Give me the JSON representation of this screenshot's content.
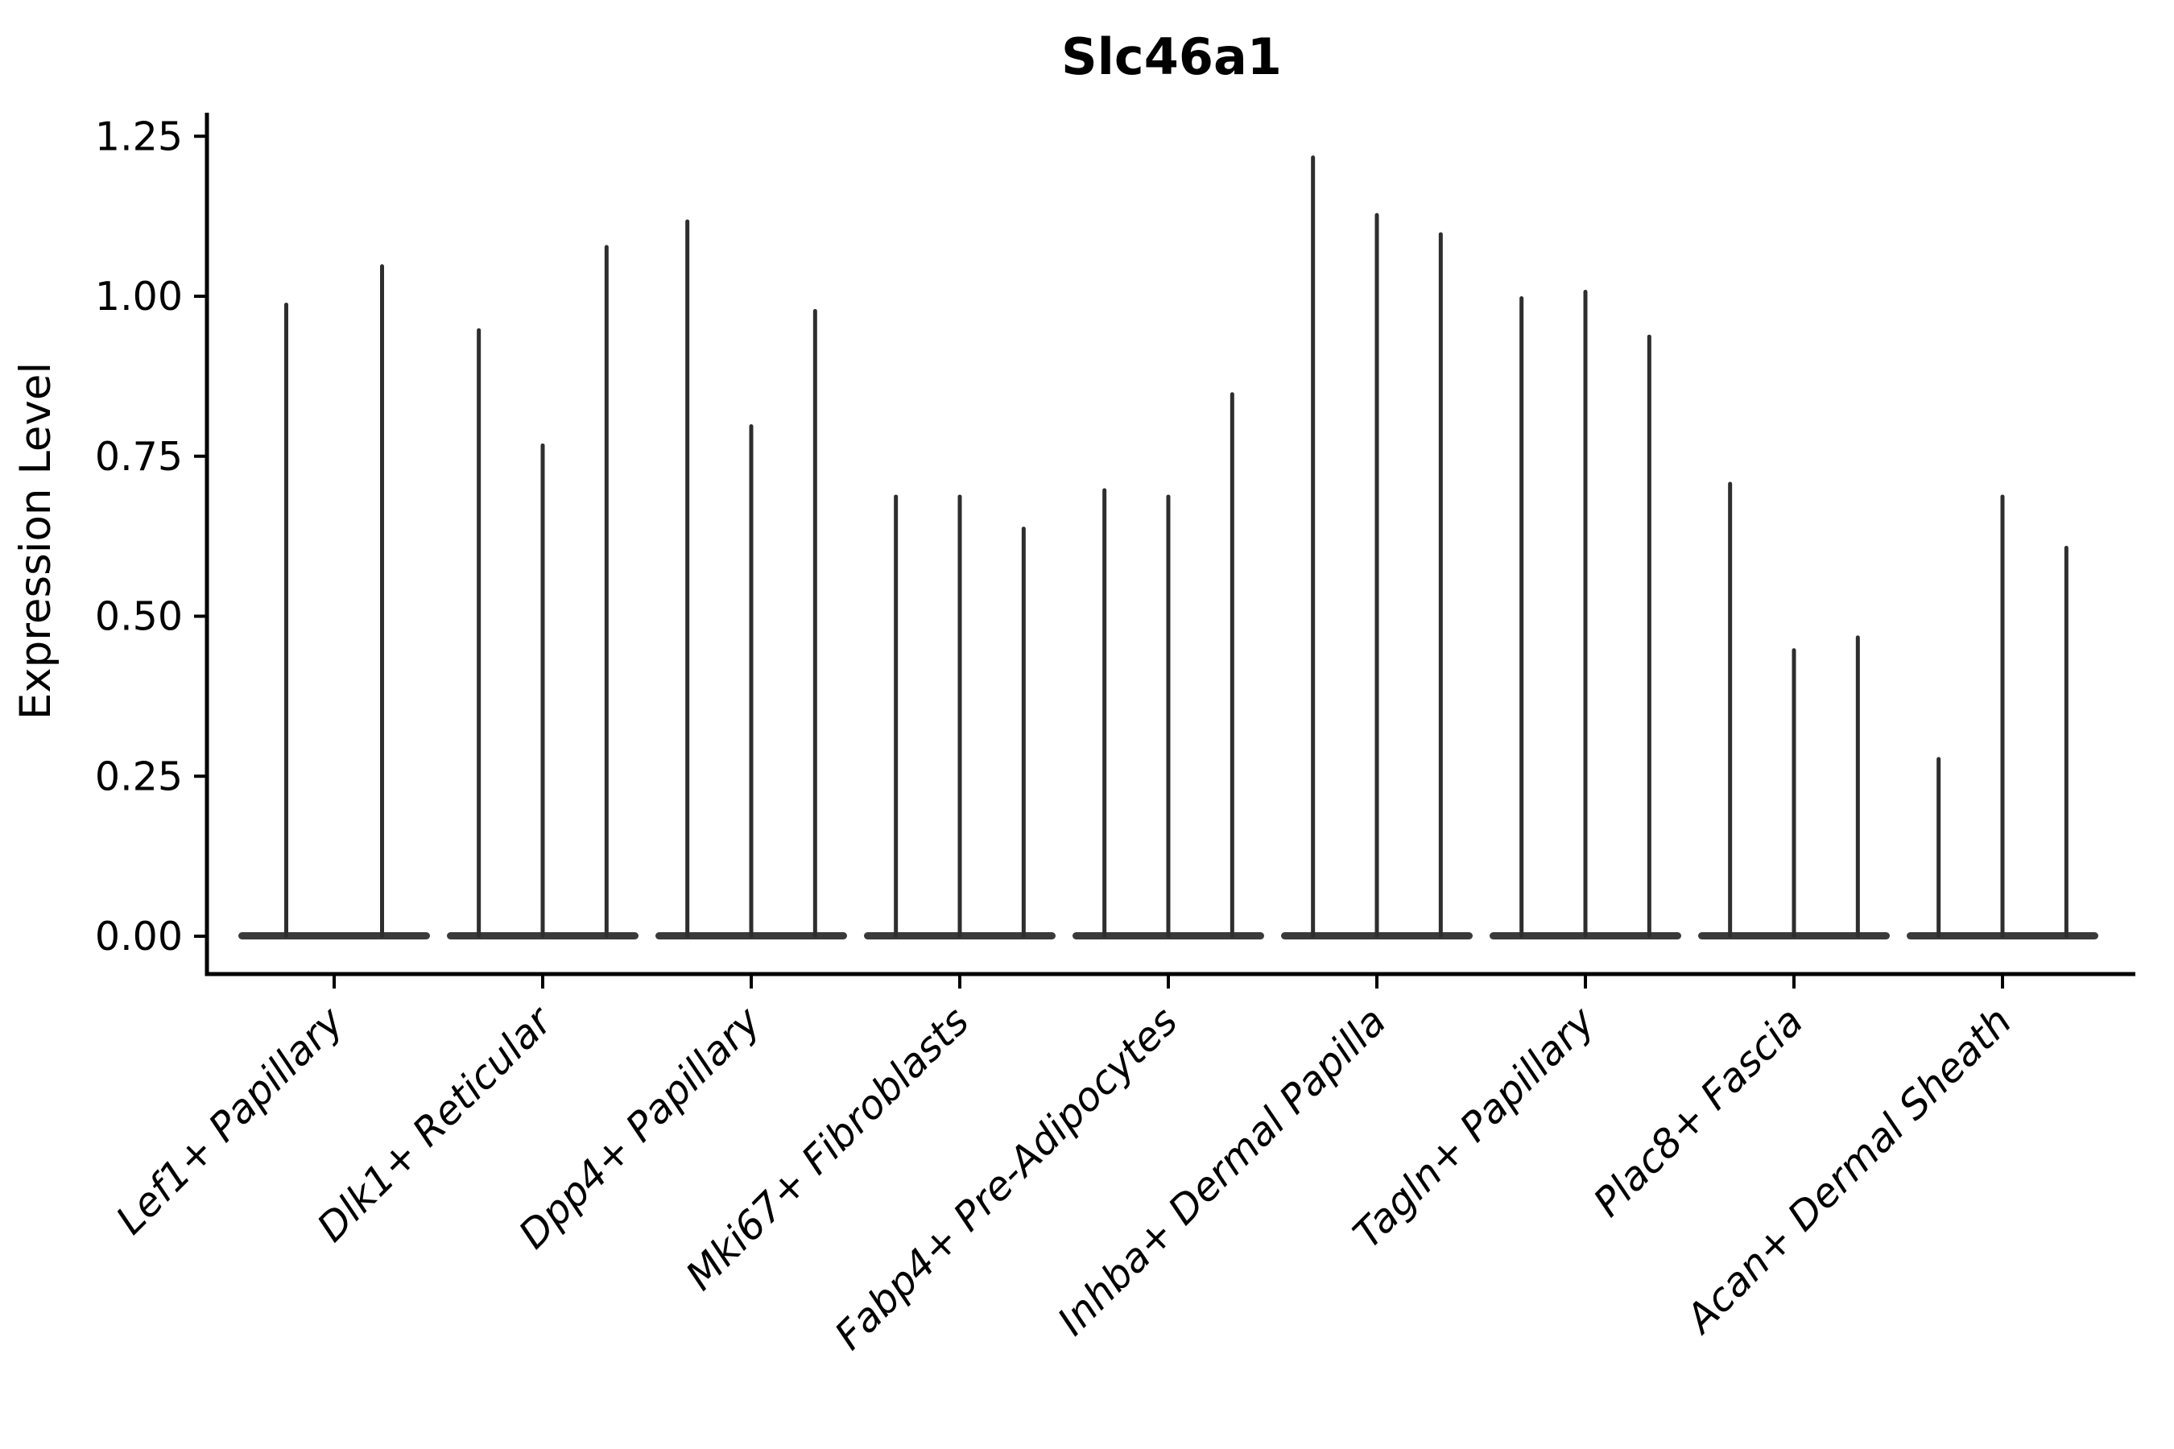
{
  "title": "Slc46a1",
  "ylabel": "Expression Level",
  "chart_data": {
    "type": "violin",
    "title": "Slc46a1",
    "xlabel": "",
    "ylabel": "Expression Level",
    "ylim": [
      0,
      1.25
    ],
    "yticks": [
      0,
      0.25,
      0.5,
      0.75,
      1.0,
      1.25
    ],
    "ytick_labels": [
      "0.00",
      "0.25",
      "0.50",
      "0.75",
      "1.00",
      "1.25"
    ],
    "grid": false,
    "legend_position": "none",
    "xtick_label_rotation_deg": 45,
    "xtick_label_style": "italic",
    "categories": [
      "Lef1+ Papillary",
      "Dlk1+ Reticular",
      "Dpp4+ Papillary",
      "Mki67+ Fibroblasts",
      "Fabp4+ Pre-Adipocytes",
      "Inhba+ Dermal Papilla",
      "Tagln+ Papillary",
      "Plac8+ Fascia",
      "Acan+ Dermal Sheath"
    ],
    "groups": [
      {
        "category": "Lef1+ Papillary",
        "violin_maxima": [
          0.99,
          1.05
        ]
      },
      {
        "category": "Dlk1+ Reticular",
        "violin_maxima": [
          0.95,
          0.77,
          1.08
        ]
      },
      {
        "category": "Dpp4+ Papillary",
        "violin_maxima": [
          1.12,
          0.8,
          0.98
        ]
      },
      {
        "category": "Mki67+ Fibroblasts",
        "violin_maxima": [
          0.69,
          0.69,
          0.64
        ]
      },
      {
        "category": "Fabp4+ Pre-Adipocytes",
        "violin_maxima": [
          0.7,
          0.69,
          0.85
        ]
      },
      {
        "category": "Inhba+ Dermal Papilla",
        "violin_maxima": [
          1.22,
          1.13,
          1.1
        ]
      },
      {
        "category": "Tagln+ Papillary",
        "violin_maxima": [
          1.0,
          1.01,
          0.94
        ]
      },
      {
        "category": "Plac8+ Fascia",
        "violin_maxima": [
          0.71,
          0.45,
          0.47
        ]
      },
      {
        "category": "Acan+ Dermal Sheath",
        "violin_maxima": [
          0.28,
          0.69,
          0.61
        ]
      }
    ],
    "violin_description": "Each group shows thin spike-like violins rising from a flat dark base at expression 0; values are violin maxima (max expression level per violin).",
    "colors": {
      "violin": "#2e2e2e",
      "violin_base": "#3a3a3a",
      "axis": "#000000",
      "text": "#000000",
      "background": "#ffffff"
    }
  }
}
